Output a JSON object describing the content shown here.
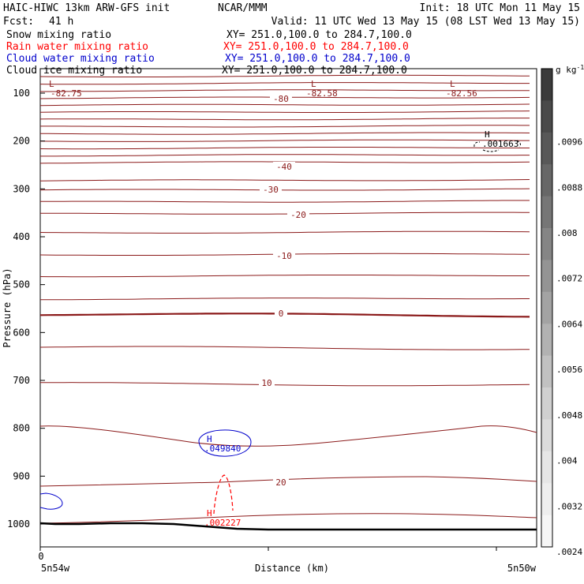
{
  "header": {
    "model": "HAIC-HIWC 13km ARW-GFS init",
    "org": "NCAR/MMM",
    "init": "Init: 18 UTC Mon 11 May 15",
    "fcst_label": "Fcst:",
    "fcst_value": "41 h",
    "valid": "Valid: 11 UTC Wed 13 May 15 (08 LST Wed 13 May 15)"
  },
  "fields": [
    {
      "name": "Snow mixing ratio",
      "xy": "XY= 251.0,100.0 to 284.7,100.0",
      "color": "#000000"
    },
    {
      "name": "Rain water mixing ratio",
      "xy": "XY= 251.0,100.0 to 284.7,100.0",
      "color": "#ff0000"
    },
    {
      "name": "Cloud water mixing ratio",
      "xy": "XY= 251.0,100.0 to 284.7,100.0",
      "color": "#0000cc"
    },
    {
      "name": "Cloud ice mixing ratio",
      "xy": "XY= 251.0,100.0 to 284.7,100.0",
      "color": "#000000"
    }
  ],
  "colors": {
    "temperature": "#8b1a1a",
    "rain": "#ff0000",
    "cloud_water": "#0000cc",
    "terrain": "#000000"
  },
  "chart_data": {
    "type": "line",
    "ylabel": "Pressure (hPa)",
    "xlabel": "Distance (km)",
    "ylim": [
      1050,
      50
    ],
    "yticks": [
      "100",
      "200",
      "300",
      "400",
      "500",
      "600",
      "700",
      "800",
      "900",
      "1000"
    ],
    "ytick_values": [
      100,
      200,
      300,
      400,
      500,
      600,
      700,
      800,
      900,
      1000
    ],
    "x_tick_label": "0",
    "x_left_label": "5n54w",
    "x_right_label": "5n50w",
    "temperature_contour_labels": [
      {
        "text": "-80",
        "p": 112
      },
      {
        "text": "-40",
        "p": 260
      },
      {
        "text": "-30",
        "p": 290
      },
      {
        "text": "-20",
        "p": 354
      },
      {
        "text": "-10",
        "p": 430
      },
      {
        "text": "0",
        "p": 563
      },
      {
        "text": "10",
        "p": 705
      },
      {
        "text": "20",
        "p": 912
      }
    ],
    "extrema": [
      {
        "mark": "L",
        "value": "-82.75",
        "color": "temperature"
      },
      {
        "mark": "L",
        "value": "-82.58",
        "color": "temperature"
      },
      {
        "mark": "L",
        "value": "-82.56",
        "color": "temperature"
      },
      {
        "mark": "H",
        "value": ".001663",
        "color": "terrain"
      },
      {
        "mark": "H",
        "value": ".049840",
        "color": "cloud_water"
      },
      {
        "mark": "H",
        "value": ".002227",
        "color": "rain"
      }
    ],
    "colorbar": {
      "units": "g kg",
      "units_exp": "-1",
      "labels": [
        ".0096",
        ".0088",
        ".008",
        ".0072",
        ".0064",
        ".0056",
        ".0048",
        ".004",
        ".0032",
        ".0024"
      ],
      "gray_levels": [
        "#3b3b3b",
        "#4a4a4a",
        "#585858",
        "#676767",
        "#767676",
        "#858585",
        "#949494",
        "#a3a3a3",
        "#b2b2b2",
        "#c1c1c1",
        "#d0d0d0",
        "#dcdcdc",
        "#e6e6e6",
        "#eeeeee",
        "#f6f6f6"
      ]
    }
  }
}
